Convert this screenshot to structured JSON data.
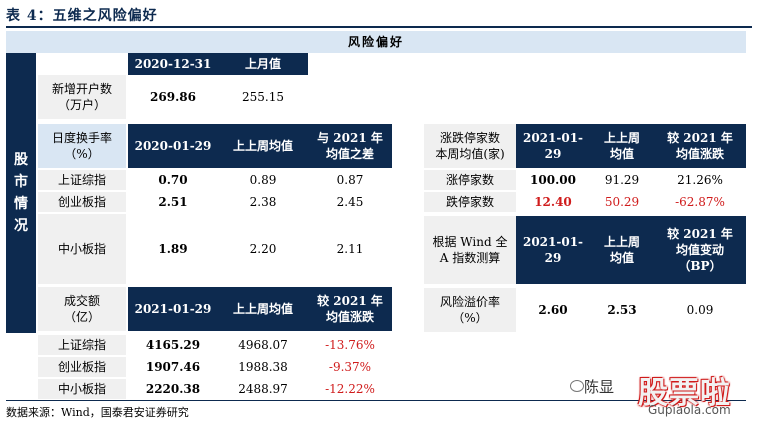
{
  "title": "表 4：五维之风险偏好",
  "banner": "风险偏好",
  "side_label": "股\n市\n情\n况",
  "accounts": {
    "header": [
      "2020-12-31",
      "上月值"
    ],
    "row_label": "新增开户数\n（万户）",
    "values": [
      "269.86",
      "255.15"
    ]
  },
  "turnover": {
    "header_label": "日度换手率\n（%）",
    "header": [
      "2020-01-29",
      "上上周均值",
      "与 2021 年\n均值之差"
    ],
    "rows": [
      {
        "name": "上证综指",
        "values": [
          "0.70",
          "0.89",
          "0.87"
        ]
      },
      {
        "name": "创业板指",
        "values": [
          "2.51",
          "2.38",
          "2.45"
        ]
      },
      {
        "name": "中小板指",
        "values": [
          "1.89",
          "2.20",
          "2.11"
        ]
      }
    ]
  },
  "volume": {
    "header_label": "成交额\n（亿）",
    "header": [
      "2021-01-29",
      "上上周均值",
      "较 2021 年\n均值涨跌"
    ],
    "rows": [
      {
        "name": "上证综指",
        "values": [
          "4165.29",
          "4968.07",
          "-13.76%"
        ]
      },
      {
        "name": "创业板指",
        "values": [
          "1907.46",
          "1988.38",
          "-9.37%"
        ]
      },
      {
        "name": "中小板指",
        "values": [
          "2220.38",
          "2488.97",
          "-12.22%"
        ]
      }
    ]
  },
  "limits": {
    "header_label": "涨跌停家数\n本周均值(家)",
    "header": [
      "2021-01-\n29",
      "上上周\n均值",
      "较 2021 年\n均值涨跌"
    ],
    "rows": [
      {
        "name": "涨停家数",
        "values": [
          "100.00",
          "91.29",
          "21.26%"
        ]
      },
      {
        "name": "跌停家数",
        "values": [
          "12.40",
          "50.29",
          "-62.87%"
        ]
      }
    ]
  },
  "premium": {
    "header_label": "根据 Wind 全\nA 指数测算",
    "header": [
      "2021-01-\n29",
      "上上周\n均值",
      "较 2021 年\n均值变动\n（BP）"
    ],
    "row_label": "风险溢价率\n（%）",
    "values": [
      "2.60",
      "2.53",
      "0.09"
    ]
  },
  "source": "数据来源：Wind，国泰君安证券研究",
  "watermark": {
    "author": "陈显",
    "brand": "股票啦",
    "site": "Gupiaola.com"
  },
  "colors": {
    "navy": "#0d2a4f",
    "pale_blue": "#d9e6f3",
    "grey": "#f0f0f0",
    "negative": "#d01c1c"
  }
}
